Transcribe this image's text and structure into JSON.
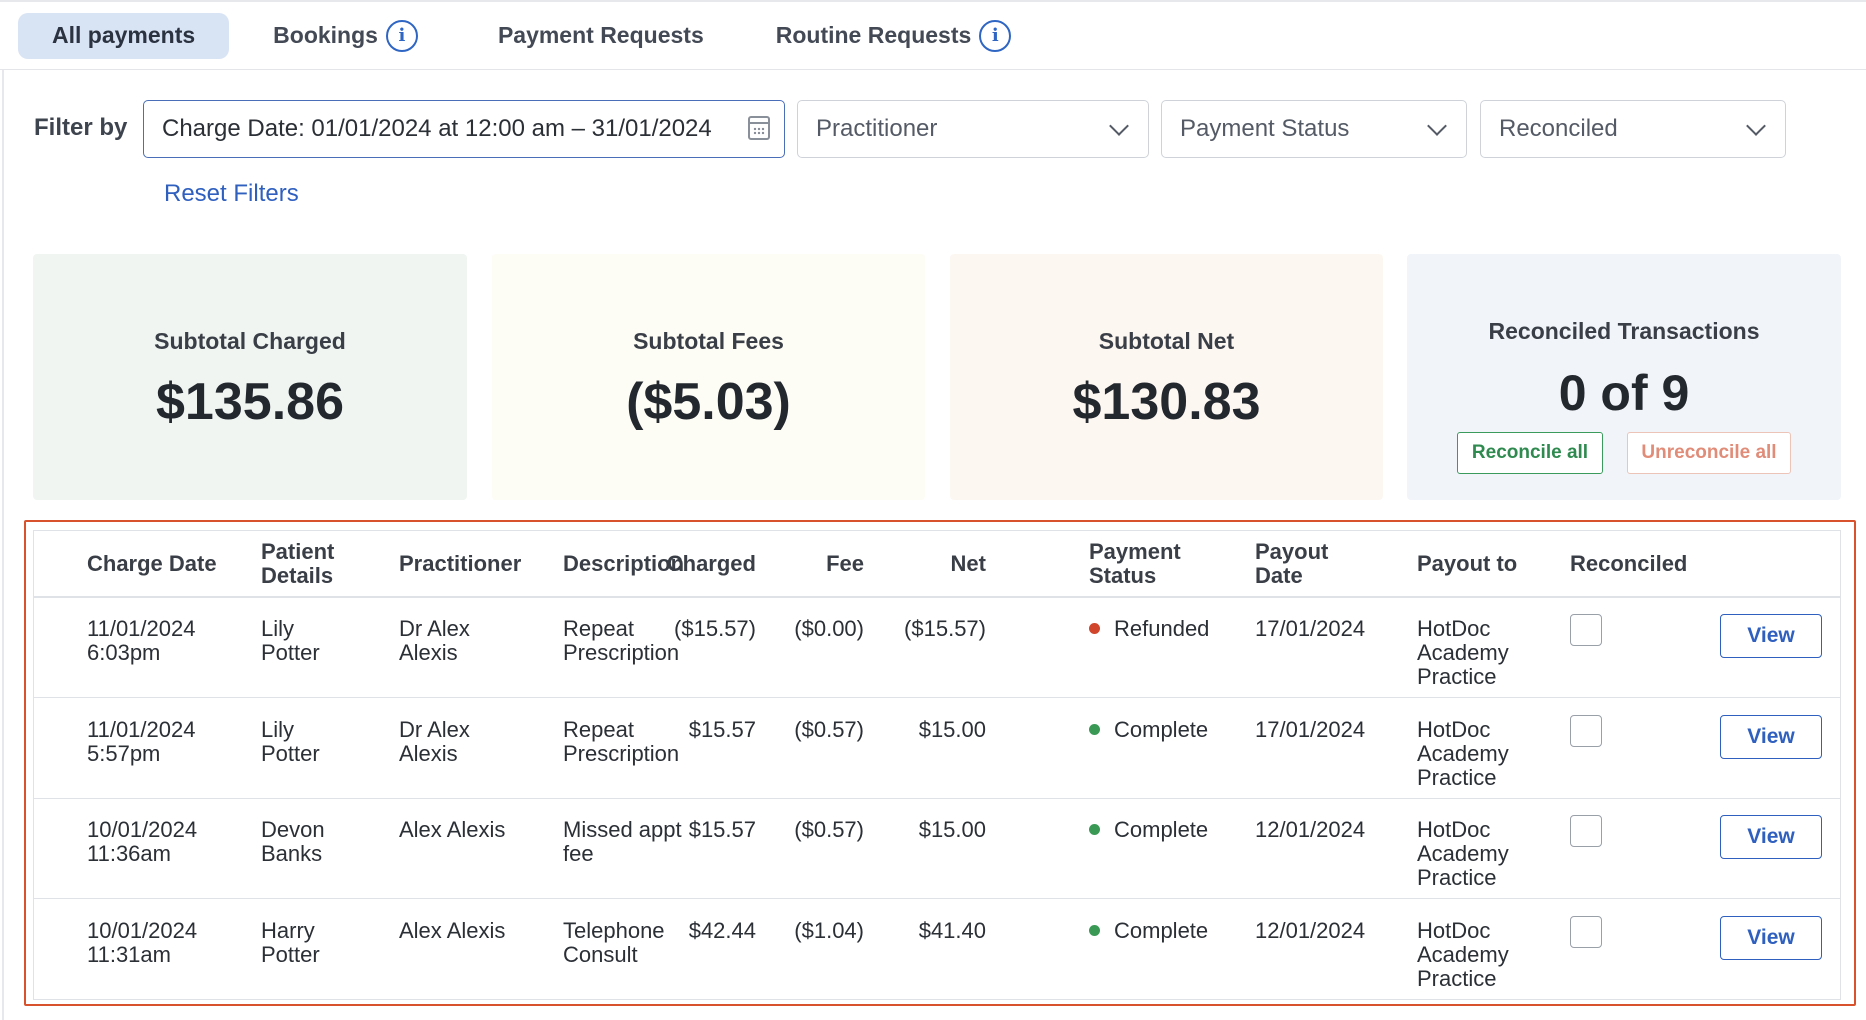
{
  "tabs": [
    {
      "label": "All payments",
      "active": true,
      "info": false
    },
    {
      "label": "Bookings",
      "active": false,
      "info": true
    },
    {
      "label": "Payment Requests",
      "active": false,
      "info": false
    },
    {
      "label": "Routine Requests",
      "active": false,
      "info": true
    }
  ],
  "filters": {
    "label": "Filter by",
    "date_value": "Charge Date: 01/01/2024 at 12:00 am – 31/01/2024",
    "practitioner": "Practitioner",
    "payment_status": "Payment Status",
    "reconciled": "Reconciled",
    "reset": "Reset Filters"
  },
  "summary": {
    "charged_label": "Subtotal Charged",
    "charged_value": "$135.86",
    "fees_label": "Subtotal Fees",
    "fees_value": "($5.03)",
    "net_label": "Subtotal Net",
    "net_value": "$130.83",
    "reconciled_label": "Reconciled Transactions",
    "reconciled_value": "0 of 9",
    "reconcile_all": "Reconcile all",
    "unreconcile_all": "Unreconcile all"
  },
  "status_colors": {
    "Refunded": "#d0452b",
    "Complete": "#3a9a55"
  },
  "table": {
    "headers": {
      "charge_date": "Charge Date",
      "patient_1": "Patient",
      "patient_2": "Details",
      "practitioner": "Practitioner",
      "description": "Description",
      "charged": "Charged",
      "fee": "Fee",
      "net": "Net",
      "status_1": "Payment",
      "status_2": "Status",
      "payout_1": "Payout",
      "payout_2": "Date",
      "payout_to": "Payout to",
      "reconciled": "Reconciled"
    },
    "rows": [
      {
        "date_1": "11/01/2024",
        "date_2": "6:03pm",
        "patient_1": "Lily",
        "patient_2": "Potter",
        "pract_1": "Dr Alex",
        "pract_2": "Alexis",
        "desc_1": "Repeat",
        "desc_2": "Prescription",
        "charged": "($15.57)",
        "fee": "($0.00)",
        "net": "($15.57)",
        "status": "Refunded",
        "payout_date": "17/01/2024",
        "payout_1": "HotDoc",
        "payout_2": "Academy",
        "payout_3": "Practice",
        "view": "View"
      },
      {
        "date_1": "11/01/2024",
        "date_2": "5:57pm",
        "patient_1": "Lily",
        "patient_2": "Potter",
        "pract_1": "Dr Alex",
        "pract_2": "Alexis",
        "desc_1": "Repeat",
        "desc_2": "Prescription",
        "charged": "$15.57",
        "fee": "($0.57)",
        "net": "$15.00",
        "status": "Complete",
        "payout_date": "17/01/2024",
        "payout_1": "HotDoc",
        "payout_2": "Academy",
        "payout_3": "Practice",
        "view": "View"
      },
      {
        "date_1": "10/01/2024",
        "date_2": "11:36am",
        "patient_1": "Devon",
        "patient_2": "Banks",
        "pract_1": "Alex Alexis",
        "pract_2": "",
        "desc_1": "Missed appt",
        "desc_2": "fee",
        "charged": "$15.57",
        "fee": "($0.57)",
        "net": "$15.00",
        "status": "Complete",
        "payout_date": "12/01/2024",
        "payout_1": "HotDoc",
        "payout_2": "Academy",
        "payout_3": "Practice",
        "view": "View"
      },
      {
        "date_1": "10/01/2024",
        "date_2": "11:31am",
        "patient_1": "Harry",
        "patient_2": "Potter",
        "pract_1": "Alex Alexis",
        "pract_2": "",
        "desc_1": "Telephone",
        "desc_2": "Consult",
        "charged": "$42.44",
        "fee": "($1.04)",
        "net": "$41.40",
        "status": "Complete",
        "payout_date": "12/01/2024",
        "payout_1": "HotDoc",
        "payout_2": "Academy",
        "payout_3": "Practice",
        "view": "View"
      }
    ]
  }
}
